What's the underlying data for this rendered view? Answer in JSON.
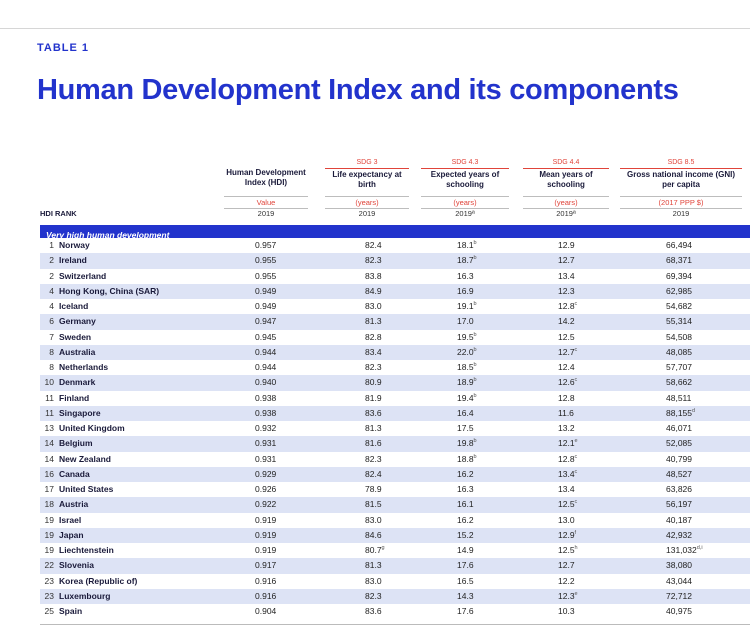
{
  "header": {
    "table_label": "TABLE 1",
    "title": "Human Development Index and its components"
  },
  "columns": {
    "rank_label": "HDI RANK",
    "hdi": {
      "sdg": "",
      "name": "Human Development Index (HDI)",
      "unit": "Value",
      "year": "2019"
    },
    "life": {
      "sdg": "SDG 3",
      "name": "Life expectancy at birth",
      "unit": "(years)",
      "year": "2019"
    },
    "school": {
      "sdg": "SDG 4.3",
      "name": "Expected years of schooling",
      "unit": "(years)",
      "year": "2019ª"
    },
    "mean": {
      "sdg": "SDG 4.4",
      "name": "Mean years of schooling",
      "unit": "(years)",
      "year": "2019ª"
    },
    "gni": {
      "sdg": "SDG 8.5",
      "name": "Gross national income (GNI) per capita",
      "unit": "(2017 PPP $)",
      "year": "2019"
    }
  },
  "group_label": "Very high human development",
  "rows": [
    {
      "rank": "1",
      "country": "Norway",
      "hdi": "0.957",
      "life": "82.4",
      "school": "18.1",
      "school_note": "b",
      "mean": "12.9",
      "mean_note": "",
      "gni": "66,494",
      "gni_note": "",
      "life_note": ""
    },
    {
      "rank": "2",
      "country": "Ireland",
      "hdi": "0.955",
      "life": "82.3",
      "school": "18.7",
      "school_note": "b",
      "mean": "12.7",
      "mean_note": "",
      "gni": "68,371",
      "gni_note": "",
      "life_note": ""
    },
    {
      "rank": "2",
      "country": "Switzerland",
      "hdi": "0.955",
      "life": "83.8",
      "school": "16.3",
      "school_note": "",
      "mean": "13.4",
      "mean_note": "",
      "gni": "69,394",
      "gni_note": "",
      "life_note": ""
    },
    {
      "rank": "4",
      "country": "Hong Kong, China (SAR)",
      "hdi": "0.949",
      "life": "84.9",
      "school": "16.9",
      "school_note": "",
      "mean": "12.3",
      "mean_note": "",
      "gni": "62,985",
      "gni_note": "",
      "life_note": ""
    },
    {
      "rank": "4",
      "country": "Iceland",
      "hdi": "0.949",
      "life": "83.0",
      "school": "19.1",
      "school_note": "b",
      "mean": "12.8",
      "mean_note": "c",
      "gni": "54,682",
      "gni_note": "",
      "life_note": ""
    },
    {
      "rank": "6",
      "country": "Germany",
      "hdi": "0.947",
      "life": "81.3",
      "school": "17.0",
      "school_note": "",
      "mean": "14.2",
      "mean_note": "",
      "gni": "55,314",
      "gni_note": "",
      "life_note": ""
    },
    {
      "rank": "7",
      "country": "Sweden",
      "hdi": "0.945",
      "life": "82.8",
      "school": "19.5",
      "school_note": "b",
      "mean": "12.5",
      "mean_note": "",
      "gni": "54,508",
      "gni_note": "",
      "life_note": ""
    },
    {
      "rank": "8",
      "country": "Australia",
      "hdi": "0.944",
      "life": "83.4",
      "school": "22.0",
      "school_note": "b",
      "mean": "12.7",
      "mean_note": "c",
      "gni": "48,085",
      "gni_note": "",
      "life_note": ""
    },
    {
      "rank": "8",
      "country": "Netherlands",
      "hdi": "0.944",
      "life": "82.3",
      "school": "18.5",
      "school_note": "b",
      "mean": "12.4",
      "mean_note": "",
      "gni": "57,707",
      "gni_note": "",
      "life_note": ""
    },
    {
      "rank": "10",
      "country": "Denmark",
      "hdi": "0.940",
      "life": "80.9",
      "school": "18.9",
      "school_note": "b",
      "mean": "12.6",
      "mean_note": "c",
      "gni": "58,662",
      "gni_note": "",
      "life_note": ""
    },
    {
      "rank": "11",
      "country": "Finland",
      "hdi": "0.938",
      "life": "81.9",
      "school": "19.4",
      "school_note": "b",
      "mean": "12.8",
      "mean_note": "",
      "gni": "48,511",
      "gni_note": "",
      "life_note": ""
    },
    {
      "rank": "11",
      "country": "Singapore",
      "hdi": "0.938",
      "life": "83.6",
      "school": "16.4",
      "school_note": "",
      "mean": "11.6",
      "mean_note": "",
      "gni": "88,155",
      "gni_note": "d",
      "life_note": ""
    },
    {
      "rank": "13",
      "country": "United Kingdom",
      "hdi": "0.932",
      "life": "81.3",
      "school": "17.5",
      "school_note": "",
      "mean": "13.2",
      "mean_note": "",
      "gni": "46,071",
      "gni_note": "",
      "life_note": ""
    },
    {
      "rank": "14",
      "country": "Belgium",
      "hdi": "0.931",
      "life": "81.6",
      "school": "19.8",
      "school_note": "b",
      "mean": "12.1",
      "mean_note": "e",
      "gni": "52,085",
      "gni_note": "",
      "life_note": ""
    },
    {
      "rank": "14",
      "country": "New Zealand",
      "hdi": "0.931",
      "life": "82.3",
      "school": "18.8",
      "school_note": "b",
      "mean": "12.8",
      "mean_note": "c",
      "gni": "40,799",
      "gni_note": "",
      "life_note": ""
    },
    {
      "rank": "16",
      "country": "Canada",
      "hdi": "0.929",
      "life": "82.4",
      "school": "16.2",
      "school_note": "",
      "mean": "13.4",
      "mean_note": "c",
      "gni": "48,527",
      "gni_note": "",
      "life_note": ""
    },
    {
      "rank": "17",
      "country": "United States",
      "hdi": "0.926",
      "life": "78.9",
      "school": "16.3",
      "school_note": "",
      "mean": "13.4",
      "mean_note": "",
      "gni": "63,826",
      "gni_note": "",
      "life_note": ""
    },
    {
      "rank": "18",
      "country": "Austria",
      "hdi": "0.922",
      "life": "81.5",
      "school": "16.1",
      "school_note": "",
      "mean": "12.5",
      "mean_note": "c",
      "gni": "56,197",
      "gni_note": "",
      "life_note": ""
    },
    {
      "rank": "19",
      "country": "Israel",
      "hdi": "0.919",
      "life": "83.0",
      "school": "16.2",
      "school_note": "",
      "mean": "13.0",
      "mean_note": "",
      "gni": "40,187",
      "gni_note": "",
      "life_note": ""
    },
    {
      "rank": "19",
      "country": "Japan",
      "hdi": "0.919",
      "life": "84.6",
      "school": "15.2",
      "school_note": "",
      "mean": "12.9",
      "mean_note": "f",
      "gni": "42,932",
      "gni_note": "",
      "life_note": ""
    },
    {
      "rank": "19",
      "country": "Liechtenstein",
      "hdi": "0.919",
      "life": "80.7",
      "school": "14.9",
      "school_note": "",
      "mean": "12.5",
      "mean_note": "h",
      "gni": "131,032",
      "gni_note": "d,i",
      "life_note": "g"
    },
    {
      "rank": "22",
      "country": "Slovenia",
      "hdi": "0.917",
      "life": "81.3",
      "school": "17.6",
      "school_note": "",
      "mean": "12.7",
      "mean_note": "",
      "gni": "38,080",
      "gni_note": "",
      "life_note": ""
    },
    {
      "rank": "23",
      "country": "Korea (Republic of)",
      "hdi": "0.916",
      "life": "83.0",
      "school": "16.5",
      "school_note": "",
      "mean": "12.2",
      "mean_note": "",
      "gni": "43,044",
      "gni_note": "",
      "life_note": ""
    },
    {
      "rank": "23",
      "country": "Luxembourg",
      "hdi": "0.916",
      "life": "82.3",
      "school": "14.3",
      "school_note": "",
      "mean": "12.3",
      "mean_note": "e",
      "gni": "72,712",
      "gni_note": "",
      "life_note": ""
    },
    {
      "rank": "25",
      "country": "Spain",
      "hdi": "0.904",
      "life": "83.6",
      "school": "17.6",
      "school_note": "",
      "mean": "10.3",
      "mean_note": "",
      "gni": "40,975",
      "gni_note": "",
      "life_note": ""
    }
  ]
}
